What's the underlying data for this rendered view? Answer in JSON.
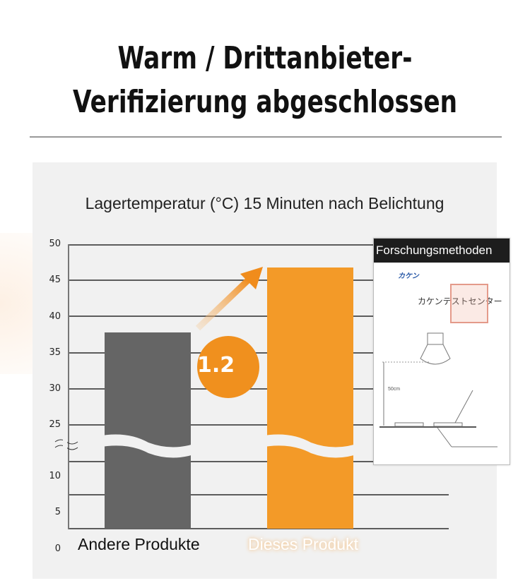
{
  "header": {
    "title_line1": "Warm / Drittanbieter-",
    "title_line2": "Verifizierung abgeschlossen"
  },
  "chart_data": {
    "type": "bar",
    "title": "Lagertemperatur (°C)   15 Minuten nach Belichtung",
    "categories": [
      "Andere Produkte",
      "Dieses Produkt"
    ],
    "values": [
      37.8,
      46.8
    ],
    "colors": [
      "#656565",
      "#f39a28"
    ],
    "ylabel": "°C",
    "ylim": [
      0,
      50
    ],
    "axis_break": [
      15,
      25
    ],
    "yticks_upper": [
      50,
      45,
      40,
      35,
      30,
      25
    ],
    "yticks_lower": [
      10,
      5,
      0
    ],
    "grid": true,
    "annotation": "1.2"
  },
  "document": {
    "header": "Forschungsmethoden",
    "org": "カケン",
    "center": "カケンテストセンター",
    "height_label": "50cm"
  }
}
